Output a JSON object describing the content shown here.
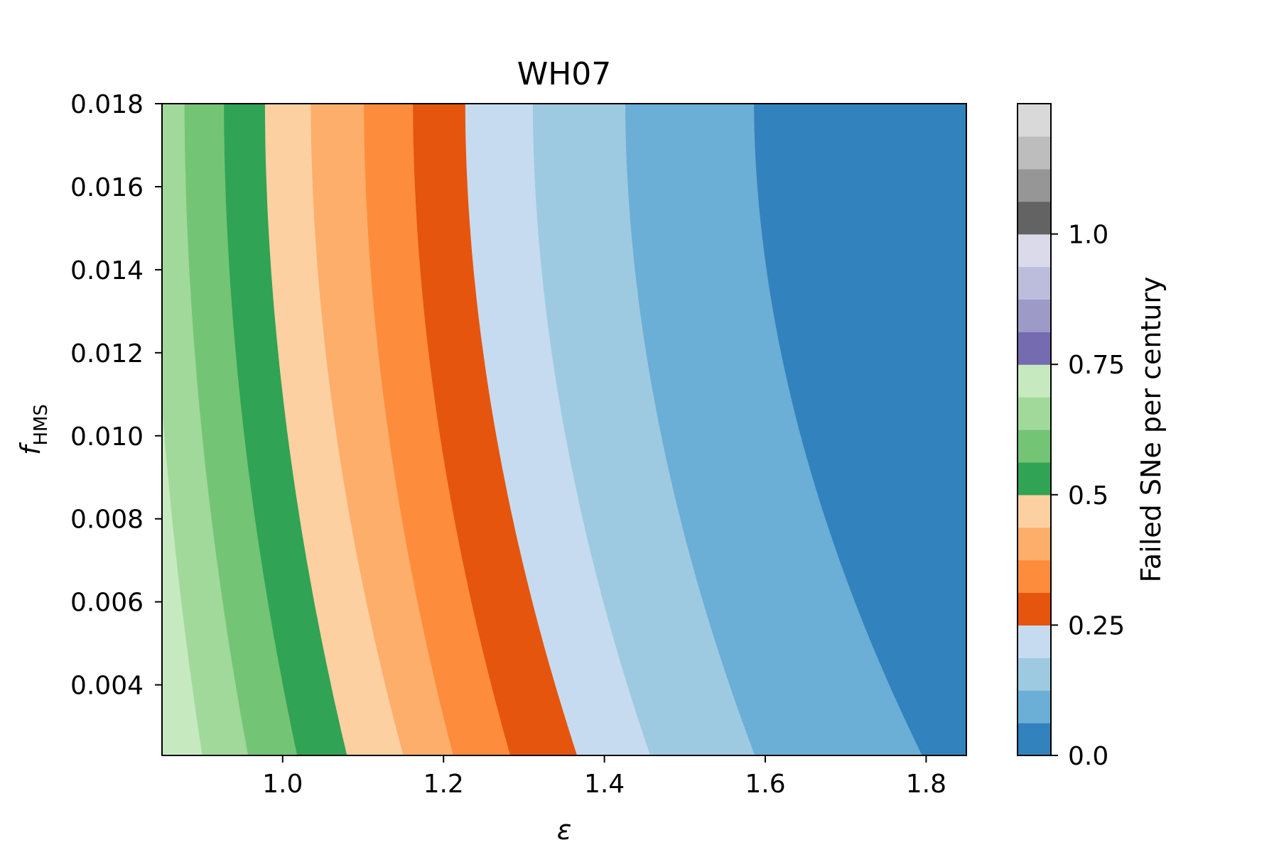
{
  "chart_data": {
    "type": "contour",
    "title": "WH07",
    "xlabel": "ε",
    "ylabel": {
      "main": "f",
      "sub": "HMS"
    },
    "xlim": [
      0.85,
      1.85
    ],
    "ylim": [
      0.0023,
      0.018
    ],
    "x_ticks": [
      {
        "value": 1.0,
        "label": "1.0"
      },
      {
        "value": 1.2,
        "label": "1.2"
      },
      {
        "value": 1.4,
        "label": "1.4"
      },
      {
        "value": 1.6,
        "label": "1.6"
      },
      {
        "value": 1.8,
        "label": "1.8"
      }
    ],
    "y_ticks": [
      {
        "value": 0.004,
        "label": "0.004"
      },
      {
        "value": 0.006,
        "label": "0.006"
      },
      {
        "value": 0.008,
        "label": "0.008"
      },
      {
        "value": 0.01,
        "label": "0.010"
      },
      {
        "value": 0.012,
        "label": "0.012"
      },
      {
        "value": 0.014,
        "label": "0.014"
      },
      {
        "value": 0.016,
        "label": "0.016"
      },
      {
        "value": 0.018,
        "label": "0.018"
      }
    ],
    "colorbar": {
      "label": "Failed SNe per century",
      "range": [
        0.0,
        1.25
      ],
      "ticks": [
        {
          "value": 0.0,
          "label": "0.0"
        },
        {
          "value": 0.25,
          "label": "0.25"
        },
        {
          "value": 0.5,
          "label": "0.5"
        },
        {
          "value": 0.75,
          "label": "0.75"
        },
        {
          "value": 1.0,
          "label": "1.0"
        }
      ],
      "level_step": 0.0625,
      "colors": [
        "#3182bd",
        "#6baed6",
        "#9ecae1",
        "#c6dbef",
        "#e6550d",
        "#fd8d3c",
        "#fdae6b",
        "#fdd0a2",
        "#31a354",
        "#74c476",
        "#a1d99b",
        "#c7e9c0",
        "#756bb1",
        "#9e9ac8",
        "#bcbddc",
        "#dadaeb",
        "#636363",
        "#969696",
        "#bdbdbd",
        "#d9d9d9"
      ]
    },
    "boundaries": [
      {
        "level": 0.0625,
        "x_top": 1.586,
        "x_bottom": 1.795
      },
      {
        "level": 0.125,
        "x_top": 1.426,
        "x_bottom": 1.587
      },
      {
        "level": 0.1875,
        "x_top": 1.311,
        "x_bottom": 1.457
      },
      {
        "level": 0.25,
        "x_top": 1.227,
        "x_bottom": 1.366
      },
      {
        "level": 0.3125,
        "x_top": 1.162,
        "x_bottom": 1.283
      },
      {
        "level": 0.375,
        "x_top": 1.101,
        "x_bottom": 1.212
      },
      {
        "level": 0.4375,
        "x_top": 1.035,
        "x_bottom": 1.15
      },
      {
        "level": 0.5,
        "x_top": 0.978,
        "x_bottom": 1.08
      },
      {
        "level": 0.5625,
        "x_top": 0.927,
        "x_bottom": 1.018
      },
      {
        "level": 0.625,
        "x_top": 0.878,
        "x_bottom": 0.957
      },
      {
        "level": 0.6875,
        "x_top": 0.835,
        "x_bottom": 0.9
      },
      {
        "level": 0.75,
        "x_top": 0.788,
        "x_bottom": 0.847
      }
    ]
  }
}
